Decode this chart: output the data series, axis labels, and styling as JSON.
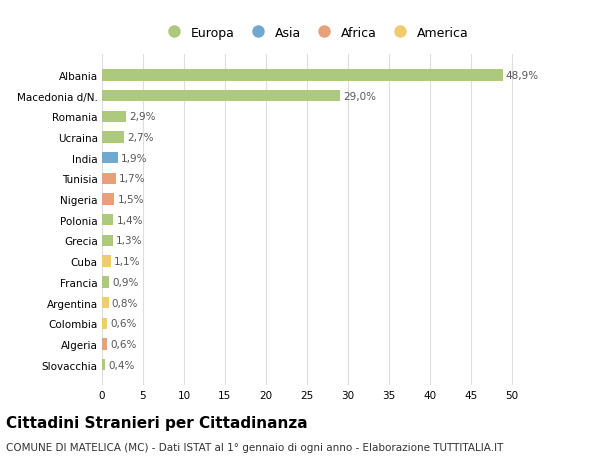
{
  "title": "Cittadini Stranieri per Cittadinanza",
  "subtitle": "COMUNE DI MATELICA (MC) - Dati ISTAT al 1° gennaio di ogni anno - Elaborazione TUTTITALIA.IT",
  "categories": [
    "Albania",
    "Macedonia d/N.",
    "Romania",
    "Ucraina",
    "India",
    "Tunisia",
    "Nigeria",
    "Polonia",
    "Grecia",
    "Cuba",
    "Francia",
    "Argentina",
    "Colombia",
    "Algeria",
    "Slovacchia"
  ],
  "values": [
    48.9,
    29.0,
    2.9,
    2.7,
    1.9,
    1.7,
    1.5,
    1.4,
    1.3,
    1.1,
    0.9,
    0.8,
    0.6,
    0.6,
    0.4
  ],
  "labels": [
    "48,9%",
    "29,0%",
    "2,9%",
    "2,7%",
    "1,9%",
    "1,7%",
    "1,5%",
    "1,4%",
    "1,3%",
    "1,1%",
    "0,9%",
    "0,8%",
    "0,6%",
    "0,6%",
    "0,4%"
  ],
  "continents": [
    "Europa",
    "Europa",
    "Europa",
    "Europa",
    "Asia",
    "Africa",
    "Africa",
    "Europa",
    "Europa",
    "America",
    "Europa",
    "America",
    "America",
    "Africa",
    "Europa"
  ],
  "continent_colors": {
    "Europa": "#adc97e",
    "Asia": "#6fa8d0",
    "Africa": "#e8a07a",
    "America": "#f0cc6e"
  },
  "legend_order": [
    "Europa",
    "Asia",
    "Africa",
    "America"
  ],
  "xlim": [
    0,
    52
  ],
  "xticks": [
    0,
    5,
    10,
    15,
    20,
    25,
    30,
    35,
    40,
    45,
    50
  ],
  "background_color": "#ffffff",
  "grid_color": "#dddddd",
  "bar_height": 0.55,
  "title_fontsize": 11,
  "subtitle_fontsize": 7.5,
  "label_fontsize": 7.5,
  "tick_fontsize": 7.5,
  "legend_fontsize": 9
}
